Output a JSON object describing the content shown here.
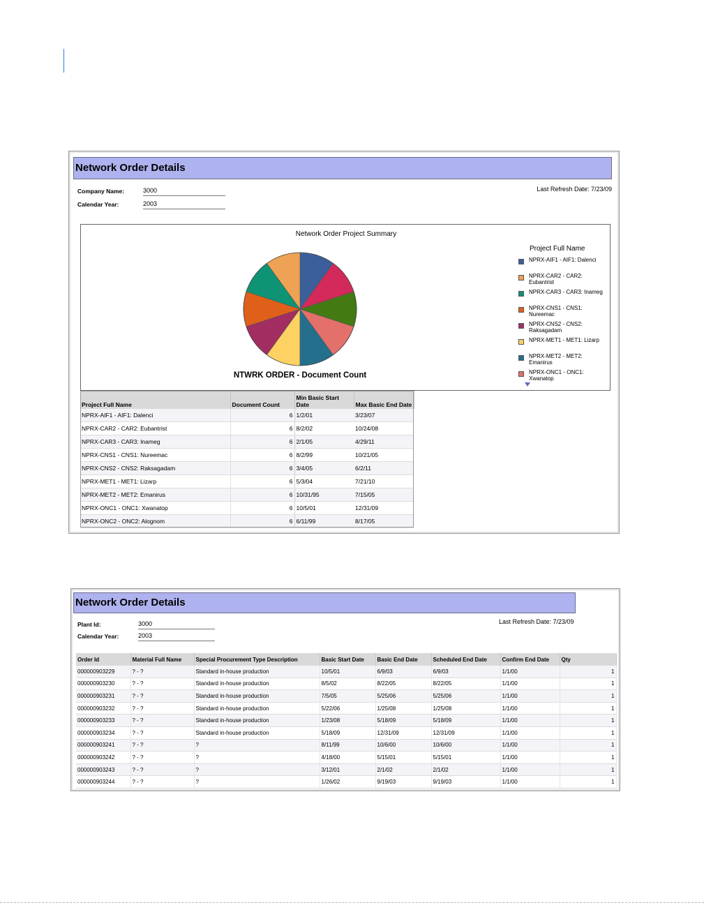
{
  "report1": {
    "title": "Network Order Details",
    "fields": [
      {
        "label": "Company Name:",
        "value": "3000"
      },
      {
        "label": "Calendar Year:",
        "value": "2003"
      }
    ],
    "refresh": "Last Refresh Date: 7/23/09",
    "table": {
      "headers": [
        "Project Full Name",
        "Document Count",
        "Min Basic Start Date",
        "Max Basic End Date"
      ],
      "rows": [
        [
          "NPRX-AIF1 - AIF1: Dalenci",
          "6",
          "1/2/01",
          "3/23/07"
        ],
        [
          "NPRX-CAR2 - CAR2: Eubantrist",
          "6",
          "8/2/02",
          "10/24/08"
        ],
        [
          "NPRX-CAR3 - CAR3: Inameg",
          "6",
          "2/1/05",
          "4/29/11"
        ],
        [
          "NPRX-CNS1 - CNS1: Nureemac",
          "6",
          "8/2/99",
          "10/21/05"
        ],
        [
          "NPRX-CNS2 - CNS2: Raksagadam",
          "6",
          "3/4/05",
          "6/2/11"
        ],
        [
          "NPRX-MET1 - MET1: Lizarp",
          "6",
          "5/3/04",
          "7/21/10"
        ],
        [
          "NPRX-MET2 - MET2: Emanirus",
          "6",
          "10/31/95",
          "7/15/05"
        ],
        [
          "NPRX-ONC1 - ONC1: Xwanatop",
          "6",
          "10/5/01",
          "12/31/09"
        ],
        [
          "NPRX-ONC2 - ONC2: Alognom",
          "6",
          "6/11/99",
          "8/17/05"
        ]
      ]
    }
  },
  "chart_data": {
    "type": "pie",
    "title": "Network Order Project Summary",
    "value_label": "NTWRK ORDER - Document Count",
    "legend_title": "Project Full Name",
    "legend_placement": "right",
    "slices": [
      {
        "name": "NPRX-AIF1 - AIF1: Dalenci",
        "value": 6,
        "color": "#3a5f9b"
      },
      {
        "name": "NPRX-CAR2 - CAR2: Eubantrist",
        "value": 6,
        "color": "#eea253"
      },
      {
        "name": "NPRX-CAR3 - CAR3: Inameg",
        "value": 6,
        "color": "#0e9375"
      },
      {
        "name": "NPRX-CNS1 - CNS1: Nureemac",
        "value": 6,
        "color": "#e0601a"
      },
      {
        "name": "NPRX-CNS2 - CNS2: Raksagadam",
        "value": 6,
        "color": "#a22d61"
      },
      {
        "name": "NPRX-MET1 - MET1: Lizarp",
        "value": 6,
        "color": "#fdd262"
      },
      {
        "name": "NPRX-MET2 - MET2: Emanirus",
        "value": 6,
        "color": "#246f8c"
      },
      {
        "name": "NPRX-ONC1 - ONC1: Xwanatop",
        "value": 6,
        "color": "#e3706a"
      },
      {
        "name": "NPRX-ONC2 - ONC2: Alognom",
        "value": 6,
        "color": "#437a14"
      },
      {
        "name": "",
        "value": 6,
        "color": "#d4295b"
      }
    ]
  },
  "report2": {
    "title": "Network Order Details",
    "fields": [
      {
        "label": "Plant Id:",
        "value": "3000"
      },
      {
        "label": "Calendar Year:",
        "value": "2003"
      }
    ],
    "refresh": "Last Refresh Date: 7/23/09",
    "table": {
      "headers": [
        "Order Id",
        "Material Full Name",
        "Special Procurement Type Description",
        "Basic Start Date",
        "Basic End Date",
        "Scheduled End Date",
        "Confirm End Date",
        "Qty"
      ],
      "rows": [
        [
          "000000903229",
          "? - ?",
          "Standard in-house production",
          "10/5/01",
          "6/9/03",
          "6/9/03",
          "1/1/00",
          "1"
        ],
        [
          "000000903230",
          "? - ?",
          "Standard in-house production",
          "8/5/02",
          "8/22/05",
          "8/22/05",
          "1/1/00",
          "1"
        ],
        [
          "000000903231",
          "? - ?",
          "Standard in-house production",
          "7/5/05",
          "5/25/06",
          "5/25/06",
          "1/1/00",
          "1"
        ],
        [
          "000000903232",
          "? - ?",
          "Standard in-house production",
          "5/22/06",
          "1/25/08",
          "1/25/08",
          "1/1/00",
          "1"
        ],
        [
          "000000903233",
          "? - ?",
          "Standard in-house production",
          "1/23/08",
          "5/18/09",
          "5/18/09",
          "1/1/00",
          "1"
        ],
        [
          "000000903234",
          "? - ?",
          "Standard in-house production",
          "5/18/09",
          "12/31/09",
          "12/31/09",
          "1/1/00",
          "1"
        ],
        [
          "000000903241",
          "? - ?",
          "?",
          "8/11/99",
          "10/6/00",
          "10/6/00",
          "1/1/00",
          "1"
        ],
        [
          "000000903242",
          "? - ?",
          "?",
          "4/18/00",
          "5/15/01",
          "5/15/01",
          "1/1/00",
          "1"
        ],
        [
          "000000903243",
          "? - ?",
          "?",
          "3/12/01",
          "2/1/02",
          "2/1/02",
          "1/1/00",
          "1"
        ],
        [
          "000000903244",
          "? - ?",
          "?",
          "1/26/02",
          "9/19/03",
          "9/19/03",
          "1/1/00",
          "1"
        ]
      ]
    }
  }
}
